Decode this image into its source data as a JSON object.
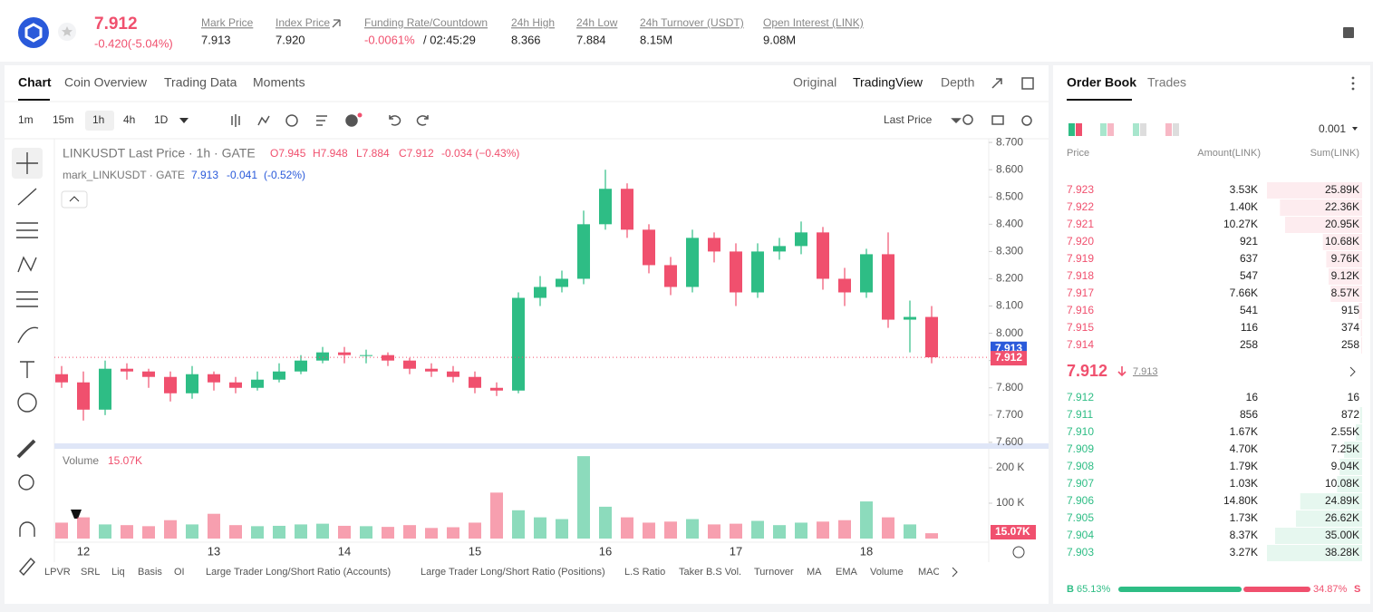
{
  "header": {
    "price": "7.912",
    "change": "-0.420(-5.04%)",
    "stats": [
      {
        "label": "Mark Price",
        "value": "7.913"
      },
      {
        "label": "Index Price",
        "value": "7.920"
      },
      {
        "label": "Funding Rate/Countdown",
        "value": "-0.0061%",
        "extra": "/ 02:45:29"
      },
      {
        "label": "24h High",
        "value": "8.366"
      },
      {
        "label": "24h Low",
        "value": "7.884"
      },
      {
        "label": "24h Turnover (USDT)",
        "value": "8.15M"
      },
      {
        "label": "Open Interest (LINK)",
        "value": "9.08M"
      }
    ]
  },
  "chart_tabs": [
    "Chart",
    "Coin Overview",
    "Trading Data",
    "Moments"
  ],
  "view_tabs": [
    "Original",
    "TradingView",
    "Depth"
  ],
  "intervals": [
    "1m",
    "15m",
    "1h",
    "4h",
    "1D"
  ],
  "price_type": "Last Price",
  "legend": {
    "title": "LINKUSDT Last Price · 1h · GATE",
    "ohlc": [
      "O7.945",
      "H7.948",
      "L7.884",
      "C7.912",
      "-0.034 (−0.43%)"
    ],
    "mark_name": "mark_LINKUSDT · GATE",
    "mark_values": [
      "7.913",
      "-0.041",
      "(-0.52%)"
    ],
    "volume_title": "Volume"
  },
  "chart_data": {
    "type": "candlestick",
    "up_color": "#2ebd85",
    "down_color": "#f0506e",
    "open": [
      7.85,
      7.82,
      7.72,
      7.87,
      7.86,
      7.84,
      7.78,
      7.85,
      7.82,
      7.8,
      7.83,
      7.86,
      7.9,
      7.93,
      7.92,
      7.92,
      7.9,
      7.87,
      7.86,
      7.84,
      7.8,
      7.79,
      8.13,
      8.17,
      8.2,
      8.4,
      8.53,
      8.38,
      8.25,
      8.17,
      8.35,
      8.3,
      8.15,
      8.3,
      8.32,
      8.37,
      8.2,
      8.15,
      8.29,
      8.05,
      8.06
    ],
    "high": [
      7.88,
      7.86,
      7.9,
      7.89,
      7.87,
      7.86,
      7.88,
      7.86,
      7.84,
      7.86,
      7.89,
      7.92,
      7.95,
      7.95,
      7.94,
      7.93,
      7.91,
      7.89,
      7.88,
      7.86,
      7.82,
      8.15,
      8.21,
      8.23,
      8.45,
      8.6,
      8.55,
      8.4,
      8.28,
      8.38,
      8.37,
      8.33,
      8.33,
      8.35,
      8.41,
      8.39,
      8.24,
      8.31,
      8.37,
      8.12,
      8.1
    ],
    "low": [
      7.8,
      7.68,
      7.7,
      7.83,
      7.8,
      7.75,
      7.76,
      7.79,
      7.78,
      7.79,
      7.82,
      7.85,
      7.89,
      7.89,
      7.89,
      7.88,
      7.85,
      7.84,
      7.82,
      7.78,
      7.77,
      7.78,
      8.1,
      8.15,
      8.18,
      8.38,
      8.35,
      8.22,
      8.14,
      8.15,
      8.26,
      8.1,
      8.13,
      8.27,
      8.29,
      8.16,
      8.1,
      8.13,
      8.02,
      7.93,
      7.89
    ],
    "close": [
      7.82,
      7.72,
      7.87,
      7.86,
      7.84,
      7.78,
      7.85,
      7.82,
      7.8,
      7.83,
      7.86,
      7.9,
      7.93,
      7.92,
      7.92,
      7.9,
      7.87,
      7.86,
      7.84,
      7.8,
      7.79,
      8.13,
      8.17,
      8.2,
      8.4,
      8.53,
      8.38,
      8.25,
      8.17,
      8.35,
      8.3,
      8.15,
      8.3,
      8.32,
      8.37,
      8.2,
      8.15,
      8.29,
      8.05,
      8.06,
      7.912
    ],
    "volume": [
      45000,
      60000,
      40000,
      38000,
      35000,
      52000,
      40000,
      70000,
      38000,
      35000,
      36000,
      40000,
      42000,
      36000,
      35000,
      33000,
      38000,
      30000,
      32000,
      45000,
      130000,
      80000,
      60000,
      55000,
      233000,
      90000,
      60000,
      45000,
      48000,
      55000,
      40000,
      42000,
      50000,
      38000,
      45000,
      48000,
      52000,
      105000,
      60000,
      40000,
      15070
    ],
    "last_volume_label": "15.07K",
    "x_labels": [
      "12",
      "13",
      "14",
      "15",
      "16",
      "17",
      "18"
    ],
    "ylim": [
      7.593,
      8.717
    ],
    "yticks": [
      {
        "value": 7.6,
        "label": "7.600"
      },
      {
        "value": 7.7,
        "label": "7.700"
      },
      {
        "value": 7.8,
        "label": "7.800"
      },
      {
        "value": 7.9,
        "label": "7.900"
      },
      {
        "value": 8.0,
        "label": "8.000"
      },
      {
        "value": 8.1,
        "label": "8.100"
      },
      {
        "value": 8.2,
        "label": "8.200"
      },
      {
        "value": 8.3,
        "label": "8.300"
      },
      {
        "value": 8.4,
        "label": "8.400"
      },
      {
        "value": 8.5,
        "label": "8.500"
      },
      {
        "value": 8.6,
        "label": "8.600"
      },
      {
        "value": 8.7,
        "label": "8.700"
      }
    ],
    "volume_ylim": [
      0,
      241000
    ],
    "volume_yticks": [
      {
        "value": 100000,
        "label": "100 K"
      },
      {
        "value": 200000,
        "label": "200 K"
      }
    ],
    "mark_price": 7.913,
    "last_price": 7.912
  },
  "indicators": [
    "LPVR",
    "SRL",
    "Liq",
    "Basis",
    "OI",
    "Large Trader Long/Short Ratio (Accounts)",
    "Large Trader Long/Short Ratio (Positions)",
    "L.S Ratio",
    "Taker B.S Vol.",
    "Turnover",
    "MA",
    "EMA",
    "Volume",
    "MACD"
  ],
  "order_book": {
    "tabs": [
      "Order Book",
      "Trades"
    ],
    "precision": "0.001",
    "columns": [
      "Price",
      "Amount(LINK)",
      "Sum(LINK)"
    ],
    "asks": [
      {
        "price": "7.923",
        "amount": "3.53K",
        "sum": {
          "value": 25890,
          "label": "25.89K"
        }
      },
      {
        "price": "7.922",
        "amount": "1.40K",
        "sum": {
          "value": 22360,
          "label": "22.36K"
        }
      },
      {
        "price": "7.921",
        "amount": "10.27K",
        "sum": {
          "value": 20950,
          "label": "20.95K"
        }
      },
      {
        "price": "7.920",
        "amount": "921",
        "sum": {
          "value": 10680,
          "label": "10.68K"
        }
      },
      {
        "price": "7.919",
        "amount": "637",
        "sum": {
          "value": 9760,
          "label": "9.76K"
        }
      },
      {
        "price": "7.918",
        "amount": "547",
        "sum": {
          "value": 9120,
          "label": "9.12K"
        }
      },
      {
        "price": "7.917",
        "amount": "7.66K",
        "sum": {
          "value": 8570,
          "label": "8.57K"
        }
      },
      {
        "price": "7.916",
        "amount": "541",
        "sum": 915
      },
      {
        "price": "7.915",
        "amount": "116",
        "sum": 374
      },
      {
        "price": "7.914",
        "amount": "258",
        "sum": 258
      }
    ],
    "last": "7.912",
    "mark": "7.913",
    "bids": [
      {
        "price": "7.912",
        "amount": "16",
        "sum": 16
      },
      {
        "price": "7.911",
        "amount": "856",
        "sum": 872
      },
      {
        "price": "7.910",
        "amount": "1.67K",
        "sum": {
          "value": 2550,
          "label": "2.55K"
        }
      },
      {
        "price": "7.909",
        "amount": "4.70K",
        "sum": {
          "value": 7250,
          "label": "7.25K"
        }
      },
      {
        "price": "7.908",
        "amount": "1.79K",
        "sum": {
          "value": 9040,
          "label": "9.04K"
        }
      },
      {
        "price": "7.907",
        "amount": "1.03K",
        "sum": {
          "value": 10080,
          "label": "10.08K"
        }
      },
      {
        "price": "7.906",
        "amount": "14.80K",
        "sum": {
          "value": 24890,
          "label": "24.89K"
        }
      },
      {
        "price": "7.905",
        "amount": "1.73K",
        "sum": {
          "value": 26620,
          "label": "26.62K"
        }
      },
      {
        "price": "7.904",
        "amount": "8.37K",
        "sum": {
          "value": 35000,
          "label": "35.00K"
        }
      },
      {
        "price": "7.903",
        "amount": "3.27K",
        "sum": {
          "value": 38280,
          "label": "38.28K"
        }
      }
    ],
    "ratio": {
      "buy_letter": "B",
      "buy": {
        "value": 65.13,
        "label": "65.13%"
      },
      "sell": {
        "value": 34.87,
        "label": "34.87%"
      },
      "sell_letter": "S"
    }
  }
}
